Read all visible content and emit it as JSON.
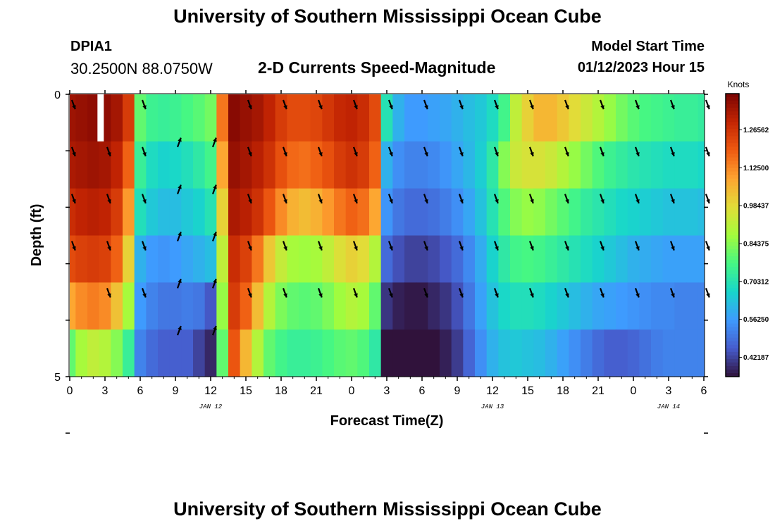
{
  "header": {
    "title": "University of Southern Mississippi Ocean Cube",
    "station": "DPIA1",
    "coordinates": "30.2500N  88.0750W",
    "subtitle": "2-D Currents Speed-Magnitude",
    "model_start_label": "Model Start Time",
    "model_start_value": "01/12/2023 Hour 15"
  },
  "footer": {
    "title": "University of Southern Mississippi Ocean Cube"
  },
  "chart_data": {
    "type": "heatmap",
    "xlabel": "Forecast Time(Z)",
    "ylabel": "Depth (ft)",
    "x_tick_labels": [
      "0",
      "3",
      "6",
      "9",
      "12",
      "15",
      "18",
      "21",
      "0",
      "3",
      "6",
      "9",
      "12",
      "15",
      "18",
      "21",
      "0",
      "3",
      "6"
    ],
    "date_labels": [
      {
        "text": "JAN 12",
        "tick_index": 4
      },
      {
        "text": "JAN 13",
        "tick_index": 12
      },
      {
        "text": "JAN 14",
        "tick_index": 17
      }
    ],
    "y_range": [
      0,
      5
    ],
    "y_tick_labels": [
      "0",
      "5"
    ],
    "colorbar": {
      "unit": "Knots",
      "min": 0.35,
      "max": 1.4,
      "ticks": [
        "1.26562",
        "1.12500",
        "0.98437",
        "0.84375",
        "0.70312",
        "0.56250",
        "0.42187"
      ],
      "tick_values": [
        1.26562,
        1.125,
        0.98437,
        0.84375,
        0.70312,
        0.5625,
        0.42187
      ]
    },
    "speed_hours": [
      0,
      1,
      2,
      3,
      4,
      5,
      6,
      7,
      8,
      9,
      10,
      11,
      12,
      13,
      14,
      15,
      16,
      17,
      18,
      19,
      20,
      21,
      22,
      23,
      24,
      25,
      26,
      27,
      28,
      29,
      30,
      31,
      32,
      33,
      34,
      35,
      36,
      37,
      38,
      39,
      40,
      41,
      42,
      43,
      44,
      45,
      46,
      47,
      48,
      49,
      50,
      51,
      52,
      53,
      54
    ],
    "speed_knots": [
      [
        1.35,
        1.36,
        1.37,
        1.37,
        1.34,
        1.25,
        0.8,
        0.75,
        0.74,
        0.75,
        0.77,
        0.79,
        0.82,
        1.15,
        1.38,
        1.36,
        1.34,
        1.3,
        1.25,
        1.22,
        1.22,
        1.23,
        1.26,
        1.29,
        1.3,
        1.28,
        1.22,
        0.7,
        0.6,
        0.56,
        0.56,
        0.57,
        0.58,
        0.6,
        0.62,
        0.64,
        0.68,
        0.76,
        0.92,
        1.0,
        1.05,
        1.05,
        1.02,
        0.98,
        0.94,
        0.9,
        0.86,
        0.82,
        0.79,
        0.77,
        0.76,
        0.75,
        0.74,
        0.74,
        0.73
      ],
      [
        1.33,
        1.34,
        1.35,
        1.34,
        1.3,
        1.18,
        0.74,
        0.68,
        0.66,
        0.67,
        0.69,
        0.72,
        0.76,
        1.08,
        1.36,
        1.34,
        1.31,
        1.27,
        1.21,
        1.17,
        1.16,
        1.18,
        1.21,
        1.25,
        1.27,
        1.25,
        1.18,
        0.6,
        0.54,
        0.52,
        0.52,
        0.53,
        0.55,
        0.58,
        0.61,
        0.65,
        0.72,
        0.84,
        0.94,
        0.96,
        0.96,
        0.94,
        0.9,
        0.86,
        0.82,
        0.78,
        0.75,
        0.73,
        0.71,
        0.7,
        0.69,
        0.68,
        0.68,
        0.68,
        0.67
      ],
      [
        1.28,
        1.3,
        1.31,
        1.3,
        1.25,
        1.1,
        0.69,
        0.64,
        0.62,
        0.62,
        0.64,
        0.66,
        0.7,
        1.0,
        1.33,
        1.31,
        1.27,
        1.2,
        1.12,
        1.06,
        1.04,
        1.06,
        1.1,
        1.15,
        1.18,
        1.16,
        1.08,
        0.55,
        0.5,
        0.48,
        0.48,
        0.49,
        0.51,
        0.54,
        0.58,
        0.63,
        0.7,
        0.78,
        0.84,
        0.86,
        0.85,
        0.82,
        0.79,
        0.76,
        0.73,
        0.71,
        0.69,
        0.67,
        0.66,
        0.65,
        0.64,
        0.63,
        0.63,
        0.63,
        0.62
      ],
      [
        1.22,
        1.24,
        1.25,
        1.24,
        1.18,
        1.0,
        0.6,
        0.56,
        0.55,
        0.56,
        0.58,
        0.6,
        0.62,
        0.92,
        1.28,
        1.24,
        1.15,
        1.02,
        0.93,
        0.88,
        0.87,
        0.88,
        0.92,
        0.97,
        1.0,
        0.98,
        0.9,
        0.48,
        0.44,
        0.42,
        0.42,
        0.43,
        0.45,
        0.48,
        0.53,
        0.59,
        0.66,
        0.72,
        0.76,
        0.77,
        0.76,
        0.74,
        0.72,
        0.7,
        0.68,
        0.66,
        0.64,
        0.62,
        0.6,
        0.59,
        0.58,
        0.57,
        0.57,
        0.57,
        0.57
      ],
      [
        1.08,
        1.12,
        1.14,
        1.12,
        1.03,
        0.88,
        0.56,
        0.52,
        0.5,
        0.5,
        0.51,
        0.5,
        0.45,
        0.86,
        1.25,
        1.18,
        1.04,
        0.9,
        0.83,
        0.8,
        0.79,
        0.8,
        0.83,
        0.87,
        0.9,
        0.88,
        0.8,
        0.4,
        0.37,
        0.36,
        0.36,
        0.38,
        0.4,
        0.44,
        0.5,
        0.57,
        0.63,
        0.67,
        0.69,
        0.69,
        0.68,
        0.66,
        0.64,
        0.62,
        0.6,
        0.58,
        0.57,
        0.56,
        0.55,
        0.54,
        0.53,
        0.53,
        0.52,
        0.52,
        0.52
      ],
      [
        0.8,
        0.88,
        0.92,
        0.9,
        0.84,
        0.74,
        0.52,
        0.48,
        0.46,
        0.46,
        0.46,
        0.42,
        0.38,
        0.8,
        1.2,
        1.05,
        0.9,
        0.8,
        0.76,
        0.74,
        0.74,
        0.75,
        0.77,
        0.79,
        0.8,
        0.78,
        0.72,
        0.34,
        0.32,
        0.31,
        0.32,
        0.34,
        0.37,
        0.41,
        0.47,
        0.54,
        0.6,
        0.63,
        0.64,
        0.63,
        0.62,
        0.6,
        0.57,
        0.54,
        0.51,
        0.48,
        0.46,
        0.46,
        0.47,
        0.49,
        0.51,
        0.52,
        0.52,
        0.52,
        0.52
      ]
    ],
    "vector_hours": [
      0,
      3,
      6,
      9,
      12,
      15,
      18,
      21,
      24,
      27,
      30,
      33,
      36,
      39,
      42,
      45,
      48,
      51,
      54
    ],
    "vector_rows": [
      0,
      1,
      2,
      3,
      4,
      5
    ],
    "vector_directions_deg": [
      [
        160,
        null,
        160,
        null,
        null,
        160,
        160,
        160,
        160,
        160,
        160,
        160,
        160,
        160,
        160,
        160,
        160,
        160,
        160
      ],
      [
        160,
        160,
        160,
        20,
        20,
        160,
        160,
        160,
        160,
        160,
        160,
        160,
        160,
        160,
        160,
        160,
        160,
        160,
        160
      ],
      [
        160,
        160,
        160,
        20,
        20,
        160,
        160,
        160,
        160,
        160,
        160,
        160,
        160,
        160,
        160,
        160,
        160,
        160,
        160
      ],
      [
        160,
        160,
        160,
        20,
        20,
        160,
        160,
        160,
        160,
        160,
        160,
        160,
        160,
        160,
        160,
        160,
        160,
        160,
        160
      ],
      [
        null,
        160,
        160,
        20,
        20,
        160,
        160,
        160,
        160,
        160,
        160,
        160,
        160,
        160,
        160,
        160,
        160,
        160,
        160
      ],
      [
        null,
        null,
        null,
        20,
        20,
        null,
        null,
        null,
        null,
        null,
        null,
        null,
        null,
        null,
        null,
        null,
        null,
        null,
        null
      ]
    ],
    "missing_cells": [
      {
        "hour": 2,
        "row": 0
      }
    ]
  }
}
